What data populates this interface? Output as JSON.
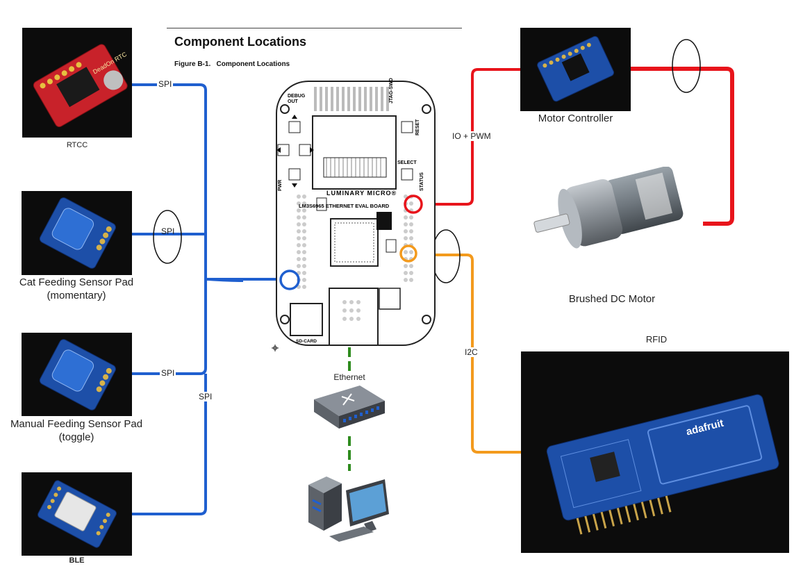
{
  "doc": {
    "heading": "Component Locations",
    "figure_caption": "Figure B-1.   Component Locations"
  },
  "board": {
    "debug_out": "DEBUG\nOUT",
    "jtag_swd": "JTAG-SWD",
    "reset": "RESET",
    "select": "SELECT",
    "status": "STATUS",
    "pwr": "PWR",
    "brand": "LUMINARY MICRO®",
    "model": "LM3S6965 ETHERNET EVAL BOARD",
    "sdcard": "SD-CARD"
  },
  "components": {
    "rtcc": {
      "label": "RTCC",
      "chip_text": "DeadOn RTC"
    },
    "cat_pad": {
      "label_line1": "Cat Feeding Sensor Pad",
      "label_line2": "(momentary)"
    },
    "manual_pad": {
      "label_line1": "Manual Feeding Sensor Pad",
      "label_line2": "(toggle)"
    },
    "ble": {
      "label": "BLE"
    },
    "motor_controller": {
      "label": "Motor Controller"
    },
    "dc_motor": {
      "label": "Brushed DC Motor"
    },
    "rfid": {
      "label": "RFID",
      "board_text": "adafruit"
    },
    "network": {
      "label": "Ethernet"
    }
  },
  "connections": {
    "spi_rtcc": "SPI",
    "spi_cat": "SPI",
    "spi_manual": "SPI",
    "spi_bus": "SPI",
    "io_pwm": "IO + PWM",
    "i2c": "I2C"
  },
  "colors": {
    "spi": "#1f5fcf",
    "pwm": "#e8141b",
    "i2c": "#f39a1d",
    "ethernet": "#2e8b1e",
    "sensor_blue": "#1d4fa8",
    "rtc_red": "#c8222a"
  }
}
